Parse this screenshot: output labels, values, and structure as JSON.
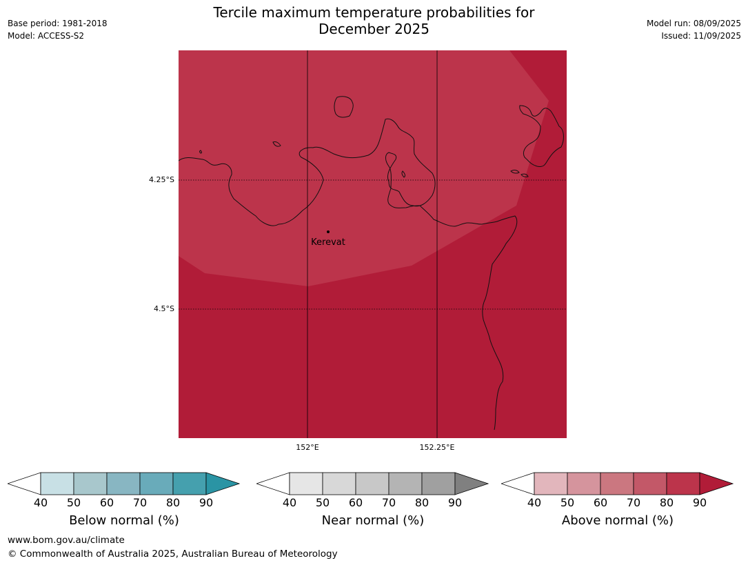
{
  "header": {
    "title_line1": "Tercile maximum temperature probabilities for",
    "title_line2": "December 2025",
    "base_period": "Base period: 1981-2018",
    "model": "Model: ACCESS-S2",
    "model_run": "Model run: 08/09/2025",
    "issued": "Issued: 11/09/2025"
  },
  "map": {
    "lat_labels": [
      "4.25°S",
      "4.5°S"
    ],
    "lon_labels": [
      "152°E",
      "152.25°E"
    ],
    "place": "Kerevat",
    "colors": {
      "above_70_80": "#bc344b",
      "above_80_90": "#b11c38"
    }
  },
  "colorbars": [
    {
      "title": "Below normal (%)",
      "ticks": [
        "40",
        "50",
        "60",
        "70",
        "80",
        "90"
      ],
      "colors": [
        "#ffffff",
        "#c8e0e5",
        "#a8c7cc",
        "#88b6c2",
        "#69abba",
        "#45a0ae",
        "#2a94a4"
      ]
    },
    {
      "title": "Near normal (%)",
      "ticks": [
        "40",
        "50",
        "60",
        "70",
        "80",
        "90"
      ],
      "colors": [
        "#ffffff",
        "#e6e6e6",
        "#d8d8d8",
        "#c8c8c8",
        "#b4b4b4",
        "#a0a0a0",
        "#808080"
      ]
    },
    {
      "title": "Above normal (%)",
      "ticks": [
        "40",
        "50",
        "60",
        "70",
        "80",
        "90"
      ],
      "colors": [
        "#ffffff",
        "#e2b6bc",
        "#d5949d",
        "#cb7780",
        "#c35868",
        "#bc344b",
        "#b11c38"
      ]
    }
  ],
  "footer": {
    "url": "www.bom.gov.au/climate",
    "copyright": "© Commonwealth of Australia 2025, Australian Bureau of Meteorology"
  }
}
